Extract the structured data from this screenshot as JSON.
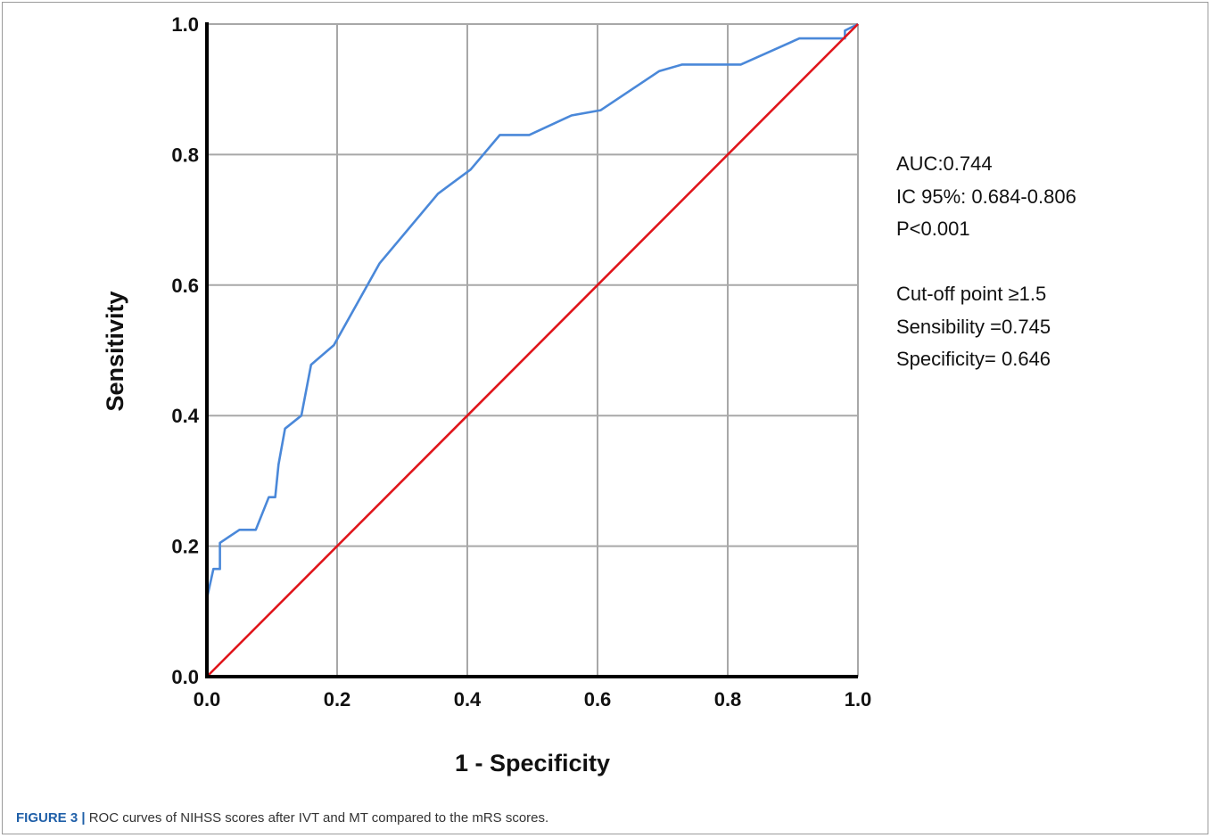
{
  "chart_data": {
    "type": "line",
    "xlabel": "1 - Specificity",
    "ylabel": "Sensitivity",
    "xlim": [
      0,
      1
    ],
    "ylim": [
      0,
      1
    ],
    "xticks": [
      "0.0",
      "0.2",
      "0.4",
      "0.6",
      "0.8",
      "1.0"
    ],
    "yticks": [
      "0.0",
      "0.2",
      "0.4",
      "0.6",
      "0.8",
      "1.0"
    ],
    "grid": true,
    "series": [
      {
        "color": "#4a88d9",
        "x": [
          0.0,
          0.0,
          0.01,
          0.02,
          0.02,
          0.05,
          0.075,
          0.095,
          0.105,
          0.11,
          0.12,
          0.145,
          0.16,
          0.195,
          0.265,
          0.355,
          0.405,
          0.45,
          0.495,
          0.56,
          0.605,
          0.695,
          0.73,
          0.82,
          0.91,
          0.98,
          0.98,
          1.0
        ],
        "values": [
          0.0,
          0.12,
          0.165,
          0.165,
          0.205,
          0.225,
          0.225,
          0.275,
          0.275,
          0.325,
          0.38,
          0.4,
          0.478,
          0.508,
          0.633,
          0.74,
          0.777,
          0.83,
          0.83,
          0.86,
          0.868,
          0.928,
          0.938,
          0.938,
          0.978,
          0.978,
          0.99,
          1.0
        ]
      },
      {
        "color": "#e0151b",
        "x": [
          0.0,
          1.0
        ],
        "values": [
          0.0,
          1.0
        ]
      }
    ]
  },
  "stats": {
    "auc": "AUC:0.744",
    "ic": "IC 95%: 0.684-0.806",
    "p": "P<0.001",
    "cutoff": "Cut-off point ≥1.5",
    "sensibility": "Sensibility =0.745",
    "specificity": "Specificity= 0.646"
  },
  "caption": {
    "label": "FIGURE 3 |",
    "text": " ROC curves of NIHSS scores after IVT and MT compared to the mRS scores."
  }
}
